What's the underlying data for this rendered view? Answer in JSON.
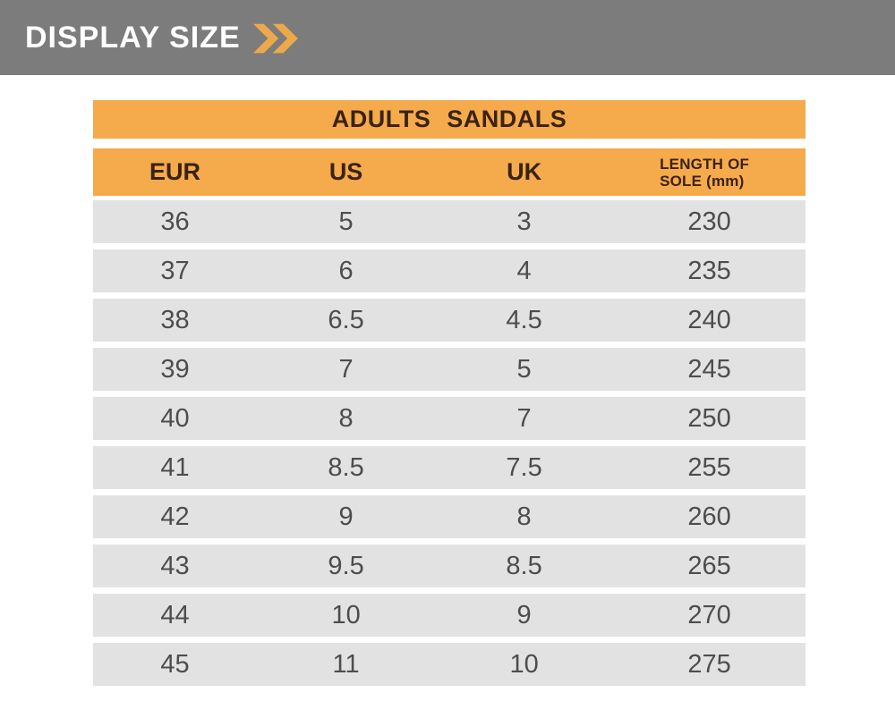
{
  "banner": {
    "title": "DISPLAY SIZE",
    "icon": "double-chevron-right"
  },
  "colors": {
    "banner_bg": "#7c7c7c",
    "banner_text": "#ffffff",
    "accent_orange": "#f5aa4c",
    "chevron": "#eda84b",
    "header_text": "#3a2313",
    "row_bg": "#e3e2e2",
    "row_text": "#4d4d4d",
    "page_bg": "#ffffff"
  },
  "chart_data": {
    "type": "table",
    "title": "ADULTS SANDALS",
    "columns": [
      "EUR",
      "US",
      "UK",
      "LENGTH OF SOLE (mm)"
    ],
    "header_cells": [
      {
        "lines": [
          "EUR"
        ]
      },
      {
        "lines": [
          "US"
        ]
      },
      {
        "lines": [
          "UK"
        ]
      },
      {
        "lines": [
          "LENGTH OF",
          "SOLE  (mm)"
        ]
      }
    ],
    "rows": [
      [
        "36",
        "5",
        "3",
        "230"
      ],
      [
        "37",
        "6",
        "4",
        "235"
      ],
      [
        "38",
        "6.5",
        "4.5",
        "240"
      ],
      [
        "39",
        "7",
        "5",
        "245"
      ],
      [
        "40",
        "8",
        "7",
        "250"
      ],
      [
        "41",
        "8.5",
        "7.5",
        "255"
      ],
      [
        "42",
        "9",
        "8",
        "260"
      ],
      [
        "43",
        "9.5",
        "8.5",
        "265"
      ],
      [
        "44",
        "10",
        "9",
        "270"
      ],
      [
        "45",
        "11",
        "10",
        "275"
      ]
    ]
  }
}
